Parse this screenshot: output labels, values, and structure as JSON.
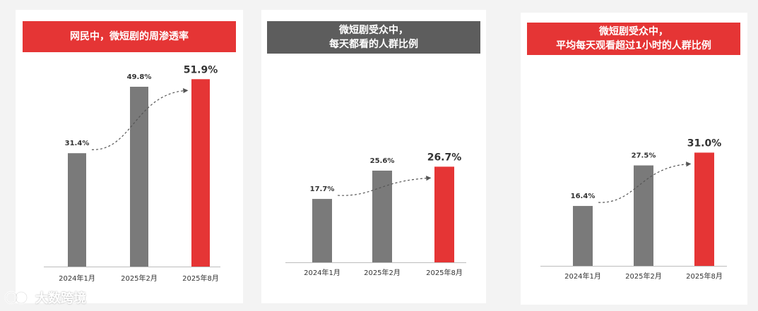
{
  "colors": {
    "red": "#e53535",
    "gray": "#7a7a7a",
    "header_gray": "#5d5d5d",
    "text": "#333333"
  },
  "watermark": {
    "text": "大数跨境"
  },
  "chart_data": [
    {
      "type": "bar",
      "title": "网民中，微短剧的周渗透率",
      "title_lines": [
        "网民中，微短剧的周渗透率"
      ],
      "categories": [
        "2024年1月",
        "2025年2月",
        "2025年8月"
      ],
      "values": [
        31.4,
        49.8,
        51.9
      ],
      "labels": [
        "31.4%",
        "49.8%",
        "51.9%"
      ],
      "highlight_index": 2,
      "header_color": "#e53535"
    },
    {
      "type": "bar",
      "title": "微短剧受众中，每天都看的人群比例",
      "title_lines": [
        "微短剧受众中，",
        "每天都看的人群比例"
      ],
      "categories": [
        "2024年1月",
        "2025年2月",
        "2025年8月"
      ],
      "values": [
        17.7,
        25.6,
        26.7
      ],
      "labels": [
        "17.7%",
        "25.6%",
        "26.7%"
      ],
      "highlight_index": 2,
      "header_color": "#5d5d5d"
    },
    {
      "type": "bar",
      "title": "微短剧受众中，平均每天观看超过1小时的人群比例",
      "title_lines": [
        "微短剧受众中，",
        "平均每天观看超过1小时的人群比例"
      ],
      "categories": [
        "2024年1月",
        "2025年2月",
        "2025年8月"
      ],
      "values": [
        16.4,
        27.5,
        31.0
      ],
      "labels": [
        "16.4%",
        "27.5%",
        "31.0%"
      ],
      "highlight_index": 2,
      "header_color": "#e53535"
    }
  ]
}
